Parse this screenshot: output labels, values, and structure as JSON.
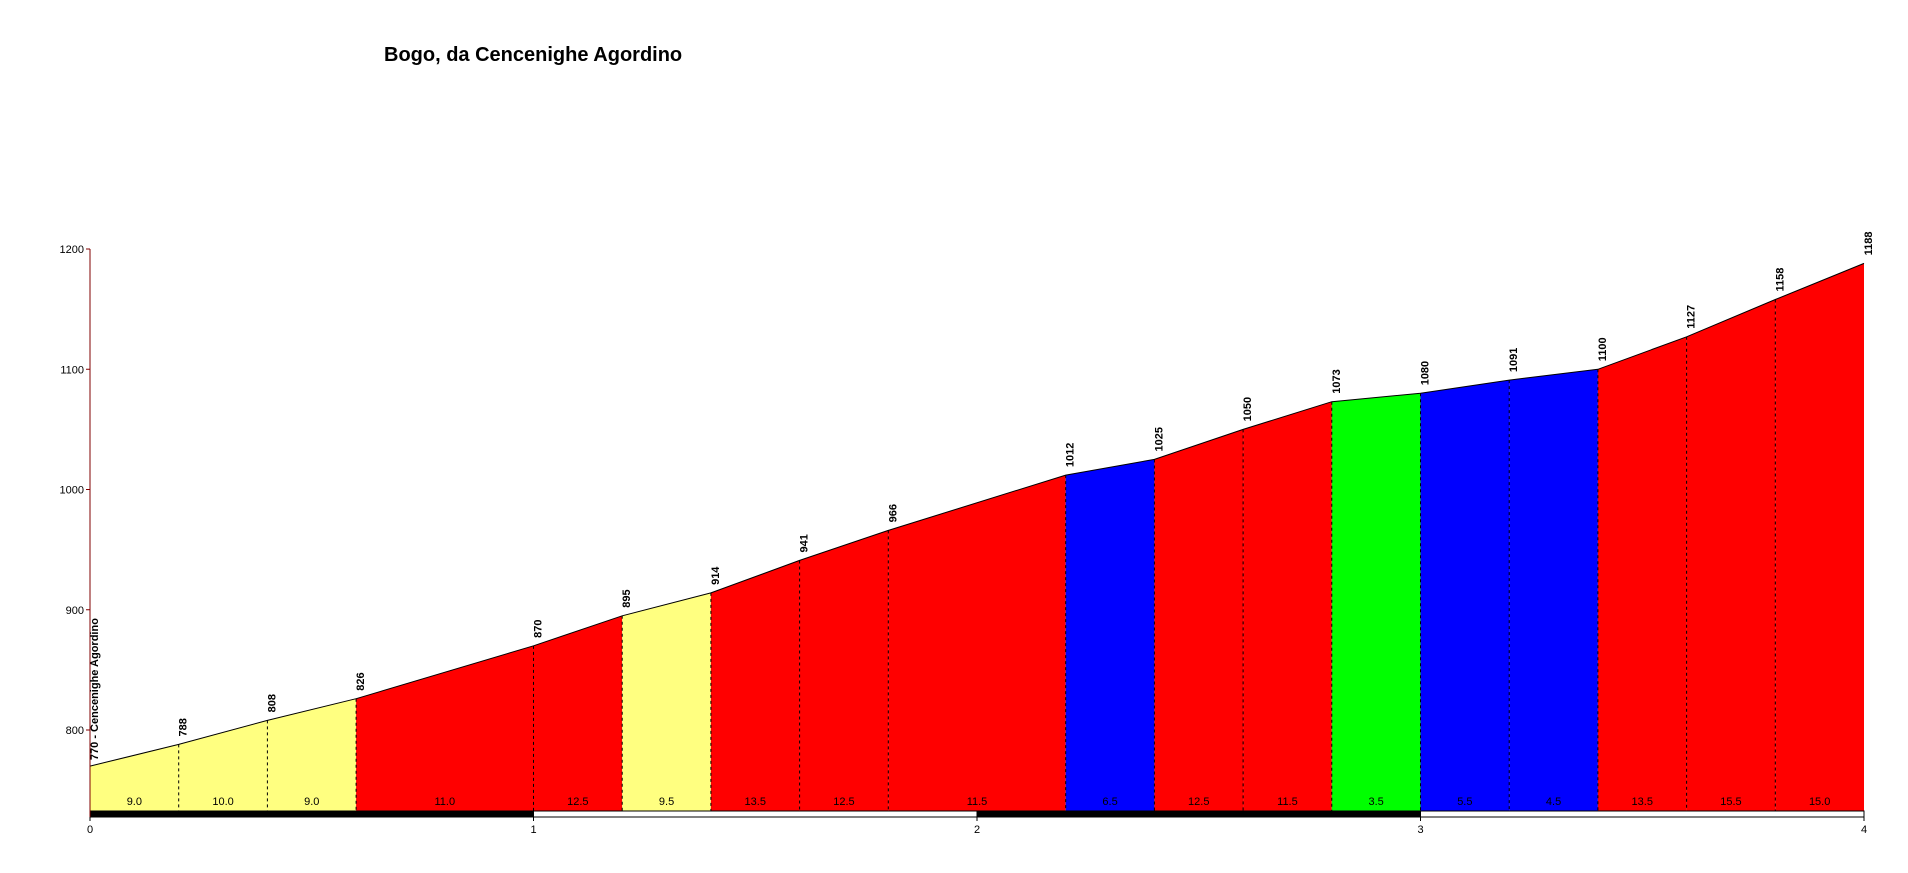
{
  "chart_data": {
    "type": "area",
    "title": "Bogo, da Cencenighe Agordino",
    "xlabel": "",
    "ylabel": "",
    "xlim": [
      0,
      4
    ],
    "ylim": [
      730,
      1200
    ],
    "x_ticks": [
      0,
      1,
      2,
      3,
      4
    ],
    "y_ticks": [
      800,
      900,
      1000,
      1100,
      1200
    ],
    "grid": false,
    "legend": "none",
    "start_label": "770 - Cencenighe Agordino",
    "points": [
      {
        "km": 0.0,
        "alt": 770,
        "label": ""
      },
      {
        "km": 0.2,
        "alt": 788,
        "label": "788"
      },
      {
        "km": 0.4,
        "alt": 808,
        "label": "808"
      },
      {
        "km": 0.6,
        "alt": 826,
        "label": "826"
      },
      {
        "km": 1.0,
        "alt": 870,
        "label": "870"
      },
      {
        "km": 1.2,
        "alt": 895,
        "label": "895"
      },
      {
        "km": 1.4,
        "alt": 914,
        "label": "914"
      },
      {
        "km": 1.6,
        "alt": 941,
        "label": "941"
      },
      {
        "km": 1.8,
        "alt": 966,
        "label": "966"
      },
      {
        "km": 2.2,
        "alt": 1012,
        "label": "1012"
      },
      {
        "km": 2.4,
        "alt": 1025,
        "label": "1025"
      },
      {
        "km": 2.6,
        "alt": 1050,
        "label": "1050"
      },
      {
        "km": 2.8,
        "alt": 1073,
        "label": "1073"
      },
      {
        "km": 3.0,
        "alt": 1080,
        "label": "1080"
      },
      {
        "km": 3.2,
        "alt": 1091,
        "label": "1091"
      },
      {
        "km": 3.4,
        "alt": 1100,
        "label": "1100"
      },
      {
        "km": 3.6,
        "alt": 1127,
        "label": "1127"
      },
      {
        "km": 3.8,
        "alt": 1158,
        "label": "1158"
      },
      {
        "km": 4.0,
        "alt": 1188,
        "label": "1188"
      }
    ],
    "segments": [
      {
        "from": 0.0,
        "to": 0.2,
        "gradient": "9.0",
        "color": "#ffff80"
      },
      {
        "from": 0.2,
        "to": 0.4,
        "gradient": "10.0",
        "color": "#ffff80"
      },
      {
        "from": 0.4,
        "to": 0.6,
        "gradient": "9.0",
        "color": "#ffff80"
      },
      {
        "from": 0.6,
        "to": 1.0,
        "gradient": "11.0",
        "color": "#ff0000"
      },
      {
        "from": 1.0,
        "to": 1.2,
        "gradient": "12.5",
        "color": "#ff0000"
      },
      {
        "from": 1.2,
        "to": 1.4,
        "gradient": "9.5",
        "color": "#ffff80"
      },
      {
        "from": 1.4,
        "to": 1.6,
        "gradient": "13.5",
        "color": "#ff0000"
      },
      {
        "from": 1.6,
        "to": 1.8,
        "gradient": "12.5",
        "color": "#ff0000"
      },
      {
        "from": 1.8,
        "to": 2.2,
        "gradient": "11.5",
        "color": "#ff0000"
      },
      {
        "from": 2.2,
        "to": 2.4,
        "gradient": "6.5",
        "color": "#0000ff"
      },
      {
        "from": 2.4,
        "to": 2.6,
        "gradient": "12.5",
        "color": "#ff0000"
      },
      {
        "from": 2.6,
        "to": 2.8,
        "gradient": "11.5",
        "color": "#ff0000"
      },
      {
        "from": 2.8,
        "to": 3.0,
        "gradient": "3.5",
        "color": "#00ff00"
      },
      {
        "from": 3.0,
        "to": 3.2,
        "gradient": "5.5",
        "color": "#0000ff"
      },
      {
        "from": 3.2,
        "to": 3.4,
        "gradient": "4.5",
        "color": "#0000ff"
      },
      {
        "from": 3.4,
        "to": 3.6,
        "gradient": "13.5",
        "color": "#ff0000"
      },
      {
        "from": 3.6,
        "to": 3.8,
        "gradient": "15.5",
        "color": "#ff0000"
      },
      {
        "from": 3.8,
        "to": 4.0,
        "gradient": "15.0",
        "color": "#ff0000"
      }
    ],
    "km_bar_colors": [
      "#000000",
      "#ffffff"
    ],
    "colors": {
      "axis": "#800000",
      "text": "#000000",
      "outline": "#000000"
    }
  }
}
